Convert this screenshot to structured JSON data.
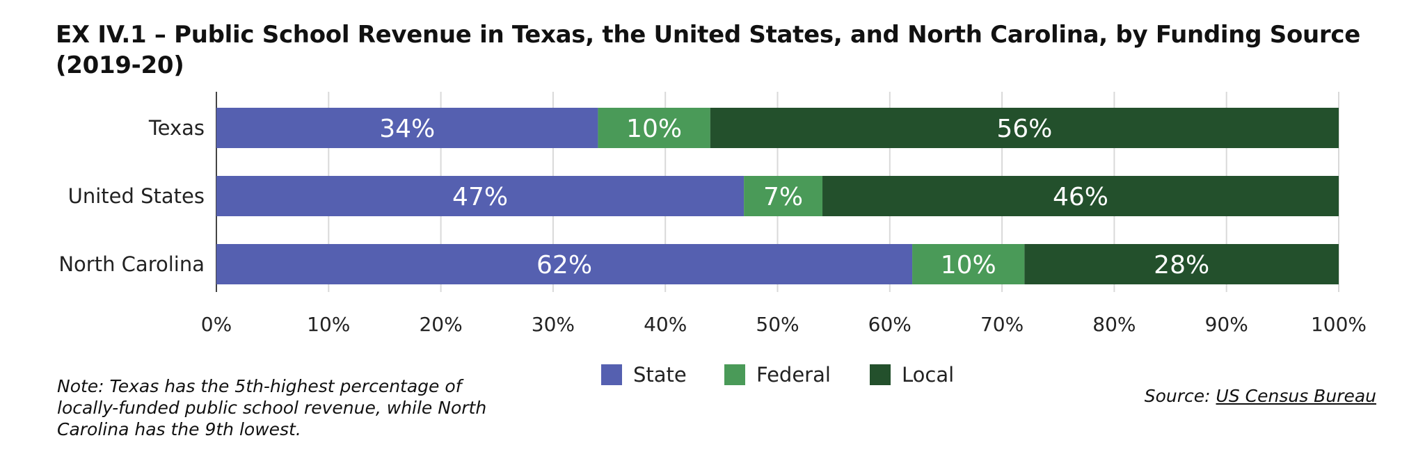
{
  "title": "EX IV.1 – Public School Revenue in Texas, the United States, and North Carolina, by Funding Source (2019-20)",
  "note": "Note: Texas has the 5th-highest percentage of locally-funded public school revenue, while North Carolina has the 9th lowest.",
  "source": {
    "prefix": "Source: ",
    "link_text": "US Census Bureau"
  },
  "colors": {
    "State": "#5560b0",
    "Federal": "#4a9a58",
    "Local": "#23502c",
    "grid": "#d9d9d9",
    "axis": "#444444"
  },
  "chart_data": {
    "type": "bar",
    "orientation": "horizontal",
    "stacked": true,
    "categories": [
      "Texas",
      "United States",
      "North Carolina"
    ],
    "series": [
      {
        "name": "State",
        "values": [
          34,
          47,
          62
        ],
        "labels": [
          "34%",
          "47%",
          "62%"
        ]
      },
      {
        "name": "Federal",
        "values": [
          10,
          7,
          10
        ],
        "labels": [
          "10%",
          "7%",
          "10%"
        ]
      },
      {
        "name": "Local",
        "values": [
          56,
          46,
          28
        ],
        "labels": [
          "56%",
          "46%",
          "28%"
        ]
      }
    ],
    "xlim": [
      0,
      100
    ],
    "xticks": [
      "0%",
      "10%",
      "20%",
      "30%",
      "40%",
      "50%",
      "60%",
      "70%",
      "80%",
      "90%",
      "100%"
    ],
    "grid": true,
    "legend": "bottom-center"
  }
}
